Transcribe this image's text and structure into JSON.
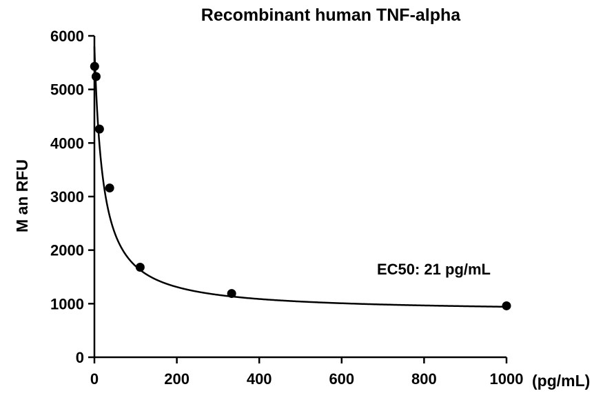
{
  "chart_data": {
    "type": "scatter",
    "title": "Recombinant human TNF-alpha",
    "xlabel": "(pg/mL)",
    "ylabel": "M  an RFU",
    "xlim": [
      0,
      1000
    ],
    "ylim": [
      0,
      6000
    ],
    "xticks": [
      0,
      200,
      400,
      600,
      800,
      1000
    ],
    "yticks": [
      0,
      1000,
      2000,
      3000,
      4000,
      5000,
      6000
    ],
    "grid": false,
    "annotation": "EC50: 21 pg/mL",
    "series": [
      {
        "points": [
          {
            "x": 0.5,
            "y": 5430
          },
          {
            "x": 4.1,
            "y": 5240
          },
          {
            "x": 12.3,
            "y": 4260
          },
          {
            "x": 37,
            "y": 3160
          },
          {
            "x": 111,
            "y": 1680
          },
          {
            "x": 333,
            "y": 1190
          },
          {
            "x": 1000,
            "y": 960
          }
        ],
        "fit_curve": {
          "model": "4PL",
          "top": 5800,
          "bottom": 840,
          "ec50": 21,
          "hill": 1.0
        }
      }
    ]
  }
}
